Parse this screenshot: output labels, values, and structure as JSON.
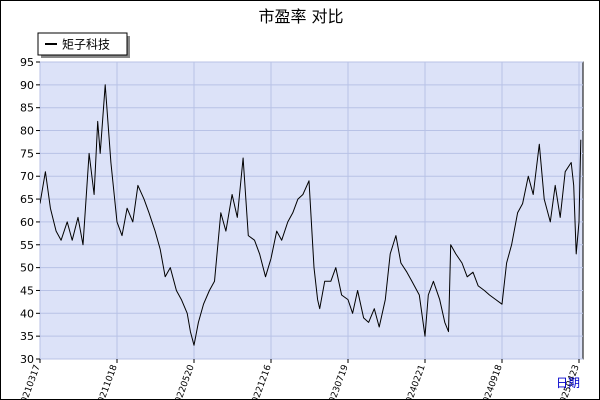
{
  "chart_data": {
    "type": "line",
    "title": "市盈率  对比",
    "xlabel": "日期",
    "ylabel": "",
    "ylim": [
      30,
      95
    ],
    "yticks": [
      30,
      35,
      40,
      45,
      50,
      55,
      60,
      65,
      70,
      75,
      80,
      85,
      90,
      95
    ],
    "grid": true,
    "legend_position": "top-left",
    "x_tick_labels": [
      "20210317",
      "20211018",
      "20220520",
      "20221216",
      "20230719",
      "20240221",
      "20240918",
      "20250423"
    ],
    "series": [
      {
        "name": "矩子科技",
        "color": "#000000",
        "x": [
          "2021-03-17",
          "2021-04-01",
          "2021-04-15",
          "2021-05-01",
          "2021-05-15",
          "2021-06-01",
          "2021-06-15",
          "2021-07-01",
          "2021-07-15",
          "2021-08-01",
          "2021-08-15",
          "2021-08-25",
          "2021-09-01",
          "2021-09-15",
          "2021-10-01",
          "2021-10-18",
          "2021-11-01",
          "2021-11-15",
          "2021-12-01",
          "2021-12-15",
          "2022-01-01",
          "2022-01-15",
          "2022-02-01",
          "2022-02-15",
          "2022-03-01",
          "2022-03-15",
          "2022-04-01",
          "2022-04-15",
          "2022-05-01",
          "2022-05-10",
          "2022-05-20",
          "2022-06-01",
          "2022-06-15",
          "2022-07-01",
          "2022-07-15",
          "2022-08-01",
          "2022-08-15",
          "2022-09-01",
          "2022-09-15",
          "2022-10-01",
          "2022-10-15",
          "2022-11-01",
          "2022-11-15",
          "2022-12-01",
          "2022-12-16",
          "2023-01-01",
          "2023-01-15",
          "2023-02-01",
          "2023-02-15",
          "2023-03-01",
          "2023-03-15",
          "2023-04-01",
          "2023-04-15",
          "2023-04-25",
          "2023-05-01",
          "2023-05-15",
          "2023-06-01",
          "2023-06-15",
          "2023-07-01",
          "2023-07-19",
          "2023-08-01",
          "2023-08-15",
          "2023-09-01",
          "2023-09-15",
          "2023-10-01",
          "2023-10-15",
          "2023-11-01",
          "2023-11-15",
          "2023-12-01",
          "2023-12-15",
          "2024-01-01",
          "2024-01-15",
          "2024-02-05",
          "2024-02-21",
          "2024-03-01",
          "2024-03-15",
          "2024-04-01",
          "2024-04-15",
          "2024-04-25",
          "2024-05-01",
          "2024-05-15",
          "2024-06-01",
          "2024-06-15",
          "2024-07-01",
          "2024-07-15",
          "2024-08-01",
          "2024-08-15",
          "2024-09-01",
          "2024-09-18",
          "2024-10-01",
          "2024-10-15",
          "2024-11-01",
          "2024-11-15",
          "2024-12-01",
          "2024-12-15",
          "2025-01-01",
          "2025-01-15",
          "2025-02-01",
          "2025-02-15",
          "2025-03-01",
          "2025-03-15",
          "2025-04-01",
          "2025-04-08",
          "2025-04-15",
          "2025-04-23",
          "2025-04-28"
        ],
        "values": [
          64,
          71,
          63,
          58,
          56,
          60,
          56,
          61,
          55,
          75,
          66,
          82,
          75,
          90,
          73,
          60,
          57,
          63,
          60,
          68,
          65,
          62,
          58,
          54,
          48,
          50,
          45,
          43,
          40,
          36,
          33,
          38,
          42,
          45,
          47,
          62,
          58,
          66,
          61,
          74,
          57,
          56,
          53,
          48,
          52,
          58,
          56,
          60,
          62,
          65,
          66,
          69,
          50,
          43,
          41,
          47,
          47,
          50,
          44,
          43,
          40,
          45,
          39,
          38,
          41,
          37,
          43,
          53,
          57,
          51,
          49,
          47,
          44,
          35,
          44,
          47,
          43,
          38,
          36,
          55,
          53,
          51,
          48,
          49,
          46,
          45,
          44,
          43,
          42,
          51,
          55,
          62,
          64,
          70,
          66,
          77,
          65,
          60,
          68,
          61,
          71,
          73,
          68,
          53,
          60,
          78
        ]
      }
    ]
  }
}
